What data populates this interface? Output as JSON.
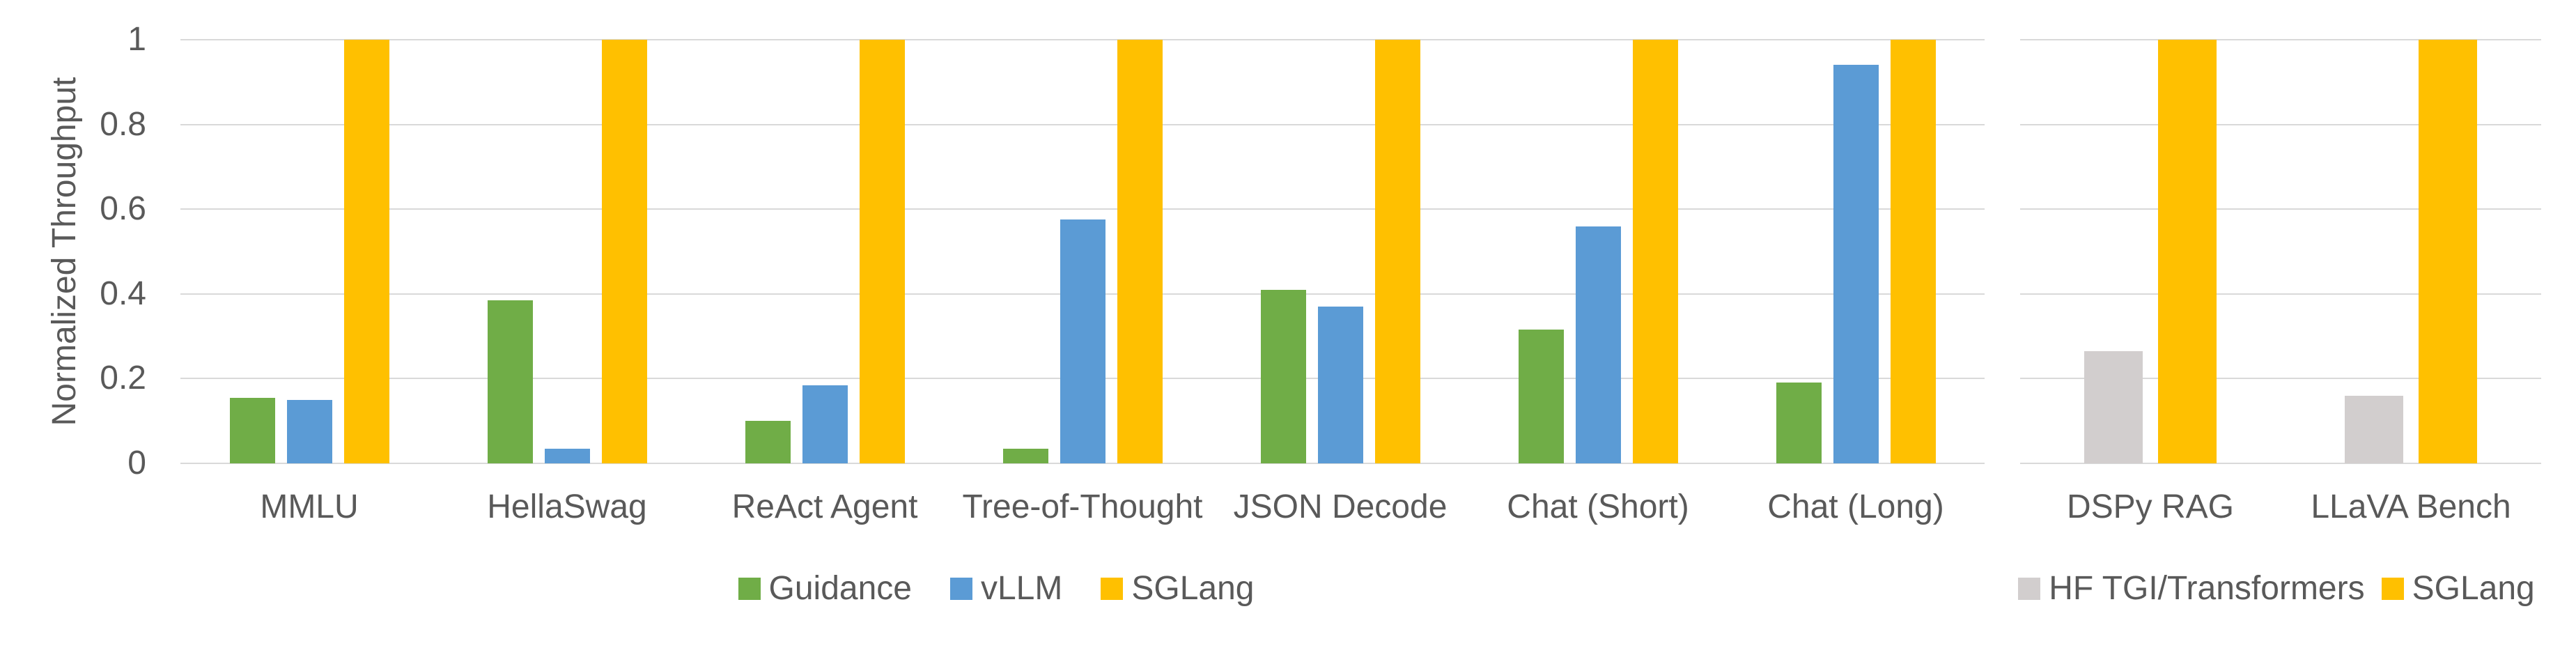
{
  "figure": {
    "y_axis_title": "Normalized Throughput",
    "background_color": "#FFFFFF",
    "text_color": "#595959",
    "gridline_color": "#D9D9D9"
  },
  "chart_data": [
    {
      "type": "bar",
      "title": "",
      "xlabel": "",
      "ylabel": "Normalized Throughput",
      "ylim": [
        0,
        1
      ],
      "yticks": [
        0,
        0.2,
        0.4,
        0.6,
        0.8,
        1
      ],
      "ytick_labels": [
        "0",
        "0.2",
        "0.4",
        "0.6",
        "0.8",
        "1"
      ],
      "grid": true,
      "legend_position": "bottom",
      "categories": [
        "MMLU",
        "HellaSwag",
        "ReAct Agent",
        "Tree-of-Thought",
        "JSON Decode",
        "Chat (Short)",
        "Chat (Long)"
      ],
      "series": [
        {
          "name": "Guidance",
          "color": "#70AD47",
          "values": [
            0.155,
            0.385,
            0.1,
            0.035,
            0.41,
            0.315,
            0.19
          ]
        },
        {
          "name": "vLLM",
          "color": "#5B9BD5",
          "values": [
            0.15,
            0.035,
            0.185,
            0.575,
            0.37,
            0.56,
            0.94
          ]
        },
        {
          "name": "SGLang",
          "color": "#FFC000",
          "values": [
            1,
            1,
            1,
            1,
            1,
            1,
            1
          ]
        }
      ]
    },
    {
      "type": "bar",
      "title": "",
      "xlabel": "",
      "ylabel": "",
      "ylim": [
        0,
        1
      ],
      "yticks": [
        0,
        0.2,
        0.4,
        0.6,
        0.8,
        1
      ],
      "ytick_labels": [
        "",
        "",
        "",
        "",
        "",
        ""
      ],
      "grid": true,
      "legend_position": "bottom",
      "categories": [
        "DSPy RAG",
        "LLaVA Bench"
      ],
      "series": [
        {
          "name": "HF TGI/Transformers",
          "color": "#D2CECE",
          "values": [
            0.265,
            0.16
          ]
        },
        {
          "name": "SGLang",
          "color": "#FFC000",
          "values": [
            1,
            1
          ]
        }
      ]
    }
  ]
}
